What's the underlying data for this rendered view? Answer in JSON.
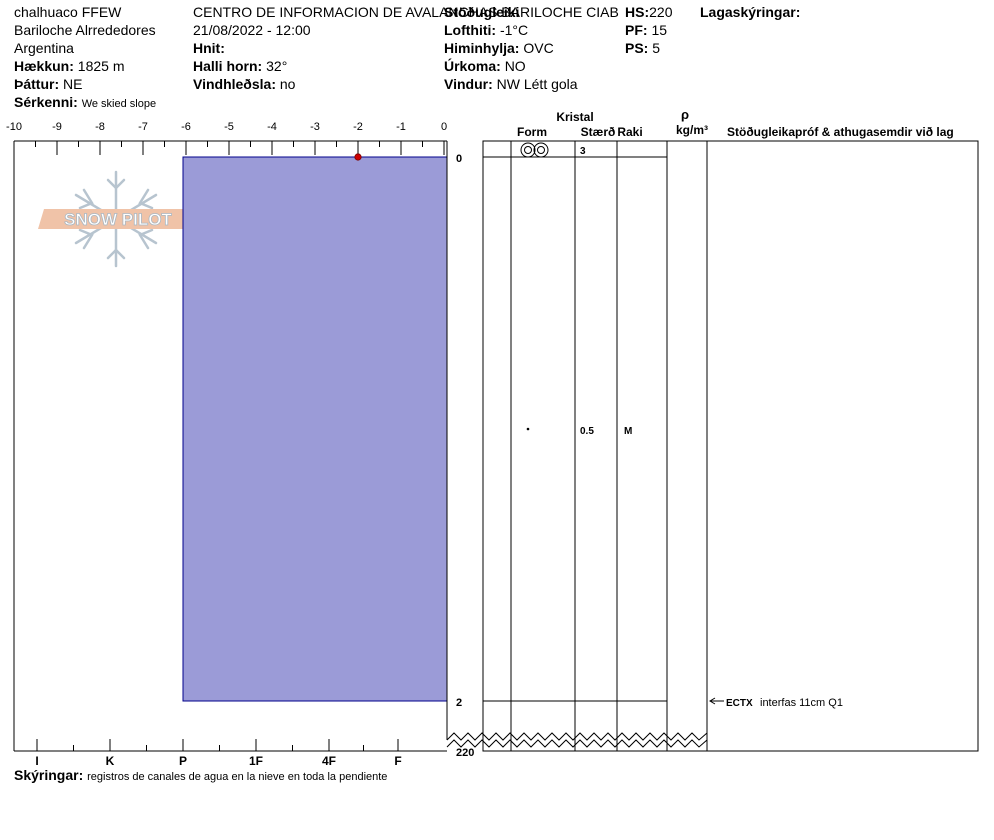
{
  "header": {
    "location": "chalhuaco FFEW",
    "region": "Bariloche Alrrededores",
    "country": "Argentina",
    "observer_org": "CENTRO DE INFORMACION DE AVALANCHAS BARILOCHE CIAB",
    "datetime": "21/08/2022 - 12:00",
    "elevation_label": "Hækkun:",
    "elevation_value": "1825 m",
    "aspect_label": "Þáttur:",
    "aspect_value": "NE",
    "feature_label": "Sérkenni:",
    "feature_value": "We skied slope",
    "coords_label": "Hnit:",
    "coords_value": "",
    "slope_label": "Halli horn:",
    "slope_value": "32°",
    "wind_loading_label": "Vindhleðsla:",
    "wind_loading_value": "no",
    "stability_label": "Stöðugleiki",
    "air_temp_label": "Lofthiti:",
    "air_temp_value": "-1°C",
    "sky_label": "Himinhylja:",
    "sky_value": "OVC",
    "precip_label": "Úrkoma:",
    "precip_value": "NO",
    "wind_label": "Vindur:",
    "wind_value": "NW Létt gola",
    "hs_label": "HS:",
    "hs_value": "220",
    "pf_label": "PF:",
    "pf_value": "15",
    "ps_label": "PS:",
    "ps_value": "5",
    "layers_label": "Lagaskýringar:"
  },
  "logo": {
    "text": "SNOW PILOT"
  },
  "table": {
    "crystal_label": "Kristal",
    "form_label": "Form",
    "size_label": "Stærð",
    "moisture_label": "Raki",
    "density_symbol": "ρ",
    "density_unit": "kg/m³",
    "tests_label": "Stöðugleikapróf & athugasemdir við lag",
    "layers": [
      {
        "form_icon": "rounding-faceted-icon",
        "size": "3",
        "moisture": ""
      },
      {
        "form_icon": "dot-icon",
        "size": "0.5",
        "moisture": "M"
      }
    ],
    "test_result_code": "ECTX",
    "test_result_note": "interfas 11cm Q1"
  },
  "footer": {
    "comments_label": "Skýringar:",
    "comments_value": "registros de canales de agua en la nieve en toda la pendiente"
  },
  "colors": {
    "hardness_fill": "#9b9bd7",
    "hardness_stroke": "#00008b",
    "temp_point": "#cc0000"
  },
  "chart_data": {
    "type": "area",
    "temperature_axis": {
      "ticks": [
        -10,
        -9,
        -8,
        -7,
        -6,
        -5,
        -4,
        -3,
        -2,
        -1,
        0
      ],
      "range": [
        -10,
        0
      ]
    },
    "hardness_axis": {
      "labels": [
        "I",
        "K",
        "P",
        "1F",
        "4F",
        "F"
      ]
    },
    "depth_axis": {
      "labels": [
        "0",
        "2",
        "220"
      ]
    },
    "hardness_profile": [
      {
        "top": 0,
        "bottom": 2,
        "hardness": "P"
      }
    ],
    "temperature_profile": [
      {
        "depth": 0,
        "temp": -2
      }
    ],
    "layer_boundaries": [
      0,
      2
    ]
  }
}
